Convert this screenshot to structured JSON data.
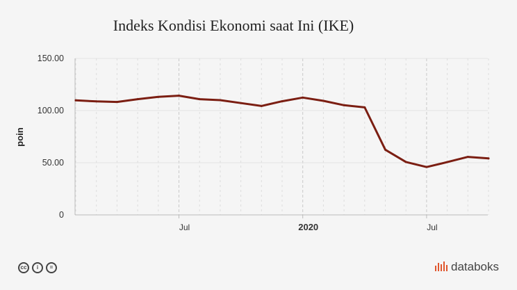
{
  "chart_data": {
    "type": "line",
    "title": "Indeks Kondisi Ekonomi saat Ini (IKE)",
    "ylabel": "poin",
    "xlabel": "",
    "ylim": [
      0,
      150
    ],
    "y_ticks": [
      "0",
      "50.00",
      "100.00",
      "150.00"
    ],
    "x_ticks": [
      {
        "label": "Jul",
        "index": 5,
        "bold": false
      },
      {
        "label": "2020",
        "index": 11,
        "bold": true
      },
      {
        "label": "Jul",
        "index": 17,
        "bold": false
      }
    ],
    "x": [
      "2019-02",
      "2019-03",
      "2019-04",
      "2019-05",
      "2019-06",
      "2019-07",
      "2019-08",
      "2019-09",
      "2019-10",
      "2019-11",
      "2019-12",
      "2020-01",
      "2020-02",
      "2020-03",
      "2020-04",
      "2020-05",
      "2020-06",
      "2020-07",
      "2020-08",
      "2020-09",
      "2020-10"
    ],
    "series": [
      {
        "name": "",
        "color": "#7b1e12",
        "values": [
          109.8,
          108.8,
          108.3,
          110.9,
          113.1,
          114.3,
          110.9,
          110.0,
          107.2,
          104.4,
          108.9,
          112.5,
          109.3,
          105.1,
          103.1,
          62.5,
          50.7,
          45.9,
          50.6,
          55.6,
          54.1
        ]
      }
    ],
    "grid": true
  },
  "footer": {
    "license_icons": [
      "cc-icon",
      "by-icon",
      "nd-icon"
    ],
    "license_glyphs": [
      "cc",
      "i",
      "="
    ],
    "brand": "databoks",
    "brand_color": "#e0562d"
  }
}
